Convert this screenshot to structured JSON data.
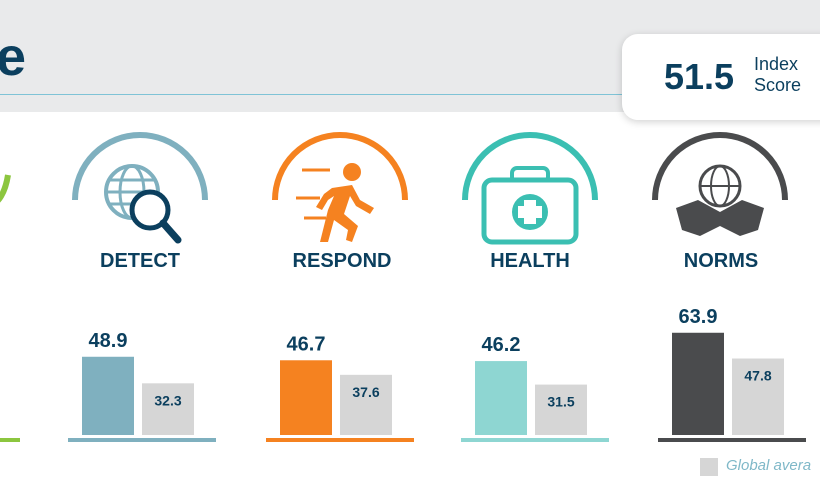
{
  "header": {
    "title_fragment": "e"
  },
  "index_score": {
    "value": "51.5",
    "label": "Index Score"
  },
  "colors": {
    "left_edge": "#8cc63f",
    "detect": "#7fb0bf",
    "respond": "#f58220",
    "health": "#8ed6d2",
    "norms": "#4a4b4d",
    "global": "#d6d6d6",
    "text": "#0b3f5e"
  },
  "pillars": [
    {
      "name": "DETECT",
      "icon": "globe-magnifier-icon"
    },
    {
      "name": "RESPOND",
      "icon": "running-person-icon"
    },
    {
      "name": "HEALTH",
      "icon": "medical-kit-icon"
    },
    {
      "name": "NORMS",
      "icon": "globe-handshake-icon"
    }
  ],
  "legend": {
    "global_label": "Global avera"
  },
  "chart_data": {
    "type": "bar",
    "categories": [
      "DETECT",
      "RESPOND",
      "HEALTH",
      "NORMS"
    ],
    "series": [
      {
        "values": [
          48.9,
          46.7,
          46.2,
          63.9
        ]
      },
      {
        "name": "Global avera",
        "values": [
          32.3,
          37.6,
          31.5,
          47.8
        ]
      }
    ],
    "value_labels": [
      [
        "48.9",
        "46.7",
        "46.2",
        "63.9"
      ],
      [
        "32.3",
        "37.6",
        "31.5",
        "47.8"
      ]
    ],
    "ylim": [
      0,
      100
    ]
  }
}
